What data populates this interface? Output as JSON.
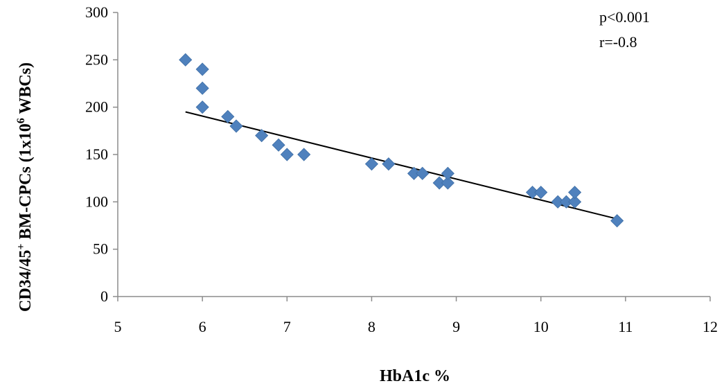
{
  "chart_data": {
    "type": "scatter",
    "xlabel": "HbA1c %",
    "ylabel_parts": {
      "base": "CD34/45",
      "sup1": "+",
      "mid": " BM-CPCs (1x10",
      "sup2": "6",
      "end": " WBCs)"
    },
    "xlim": [
      5,
      12
    ],
    "ylim": [
      0,
      300
    ],
    "x_ticks": [
      5,
      6,
      7,
      8,
      9,
      10,
      11,
      12
    ],
    "y_ticks": [
      0,
      50,
      100,
      150,
      200,
      250,
      300
    ],
    "grid": false,
    "legend": "none",
    "marker": "diamond",
    "colors": {
      "points": "#4f81bd",
      "trendline": "#000000",
      "axes": "#8c8c8c"
    },
    "series": [
      {
        "points": [
          {
            "x": 5.8,
            "y": 250
          },
          {
            "x": 6.0,
            "y": 240
          },
          {
            "x": 6.0,
            "y": 220
          },
          {
            "x": 6.0,
            "y": 200
          },
          {
            "x": 6.3,
            "y": 190
          },
          {
            "x": 6.4,
            "y": 180
          },
          {
            "x": 6.7,
            "y": 170
          },
          {
            "x": 6.9,
            "y": 160
          },
          {
            "x": 7.0,
            "y": 150
          },
          {
            "x": 7.2,
            "y": 150
          },
          {
            "x": 8.0,
            "y": 140
          },
          {
            "x": 8.2,
            "y": 140
          },
          {
            "x": 8.5,
            "y": 130
          },
          {
            "x": 8.6,
            "y": 130
          },
          {
            "x": 8.8,
            "y": 120
          },
          {
            "x": 8.9,
            "y": 120
          },
          {
            "x": 8.9,
            "y": 130
          },
          {
            "x": 9.9,
            "y": 110
          },
          {
            "x": 10.0,
            "y": 110
          },
          {
            "x": 10.2,
            "y": 100
          },
          {
            "x": 10.3,
            "y": 100
          },
          {
            "x": 10.4,
            "y": 100
          },
          {
            "x": 10.4,
            "y": 110
          },
          {
            "x": 10.9,
            "y": 80
          }
        ]
      }
    ],
    "trendline": {
      "x": [
        5.8,
        10.9
      ],
      "y": [
        195,
        82
      ]
    },
    "annotations": [
      "p<0.001",
      "r=-0.8"
    ]
  }
}
